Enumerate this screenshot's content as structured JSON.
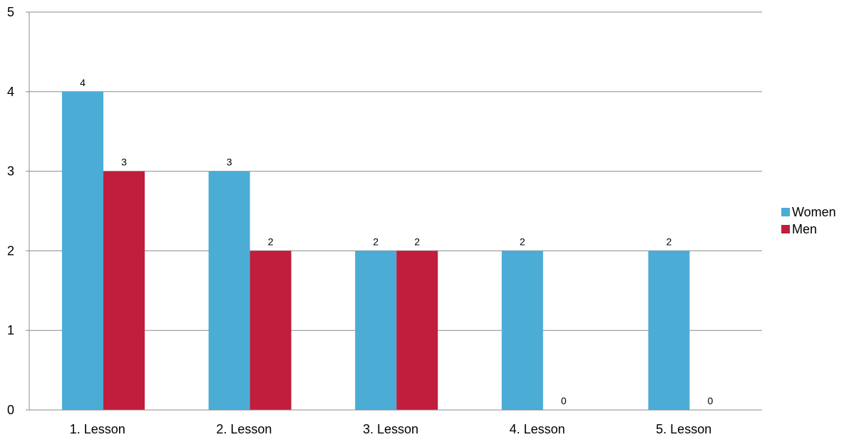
{
  "chart_data": {
    "type": "bar",
    "title": "",
    "xlabel": "",
    "ylabel": "",
    "categories": [
      "1. Lesson",
      "2. Lesson",
      "3. Lesson",
      "4. Lesson",
      "5. Lesson"
    ],
    "series": [
      {
        "name": "Women",
        "values": [
          4,
          3,
          2,
          2,
          2
        ],
        "color": "#4BACD6"
      },
      {
        "name": "Men",
        "values": [
          3,
          2,
          2,
          0,
          0
        ],
        "color": "#C01E3C"
      }
    ],
    "ylim": [
      0,
      5
    ],
    "yticks": [
      "0",
      "1",
      "2",
      "3",
      "4",
      "5"
    ],
    "grid": true,
    "data_labels": true,
    "legend_position": "right"
  },
  "legend": {
    "women": "Women",
    "men": "Men"
  }
}
